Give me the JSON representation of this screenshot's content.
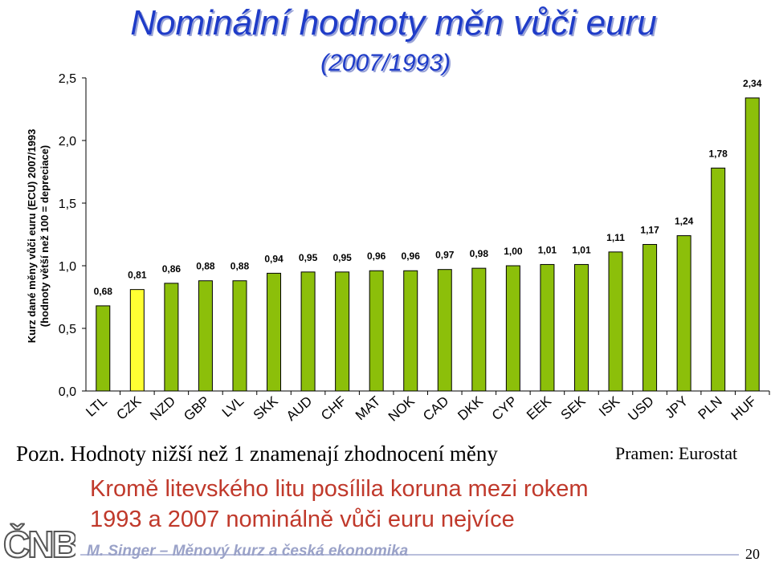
{
  "title": "Nominální hodnoty měn vůči euru",
  "subtitle": "(2007/1993)",
  "note": "Pozn. Hodnoty nižší než 1 znamenají zhodnocení měny",
  "source": "Pramen: Eurostat",
  "highlight_line1": "Kromě litevského litu posílila koruna mezi rokem",
  "highlight_line2": "1993 a 2007 nominálně vůči euru nejvíce",
  "footer": "M. Singer – Měnový kurz a česká ekonomika",
  "page_number": "20",
  "logo_text": "ČNB",
  "colors": {
    "bar": "#8cbf0a",
    "highlight_bar": "#ffff33",
    "title": "#1f3cc8",
    "highlight_text": "#c0392b"
  },
  "chart_data": {
    "type": "bar",
    "ylabel_line1": "Kurz dané měny vůči euru (ECU) 2007/1993",
    "ylabel_line2": "(hodnoty větší než 100 = depreciace)",
    "ylim": [
      0,
      2.5
    ],
    "yticks": [
      "0,0",
      "0,5",
      "1,0",
      "1,5",
      "2,0",
      "2,5"
    ],
    "categories": [
      "LTL",
      "CZK",
      "NZD",
      "GBP",
      "LVL",
      "SKK",
      "AUD",
      "CHF",
      "MAT",
      "NOK",
      "CAD",
      "DKK",
      "CYP",
      "EEK",
      "SEK",
      "ISK",
      "USD",
      "JPY",
      "PLN",
      "HUF"
    ],
    "values": [
      0.68,
      0.81,
      0.86,
      0.88,
      0.88,
      0.94,
      0.95,
      0.95,
      0.96,
      0.96,
      0.97,
      0.98,
      1.0,
      1.01,
      1.01,
      1.11,
      1.17,
      1.24,
      1.78,
      2.34
    ],
    "value_labels": [
      "0,68",
      "0,81",
      "0,86",
      "0,88",
      "0,88",
      "0,94",
      "0,95",
      "0,95",
      "0,96",
      "0,96",
      "0,97",
      "0,98",
      "1,00",
      "1,01",
      "1,01",
      "1,11",
      "1,17",
      "1,24",
      "1,78",
      "2,34"
    ],
    "highlight_category": "CZK"
  }
}
